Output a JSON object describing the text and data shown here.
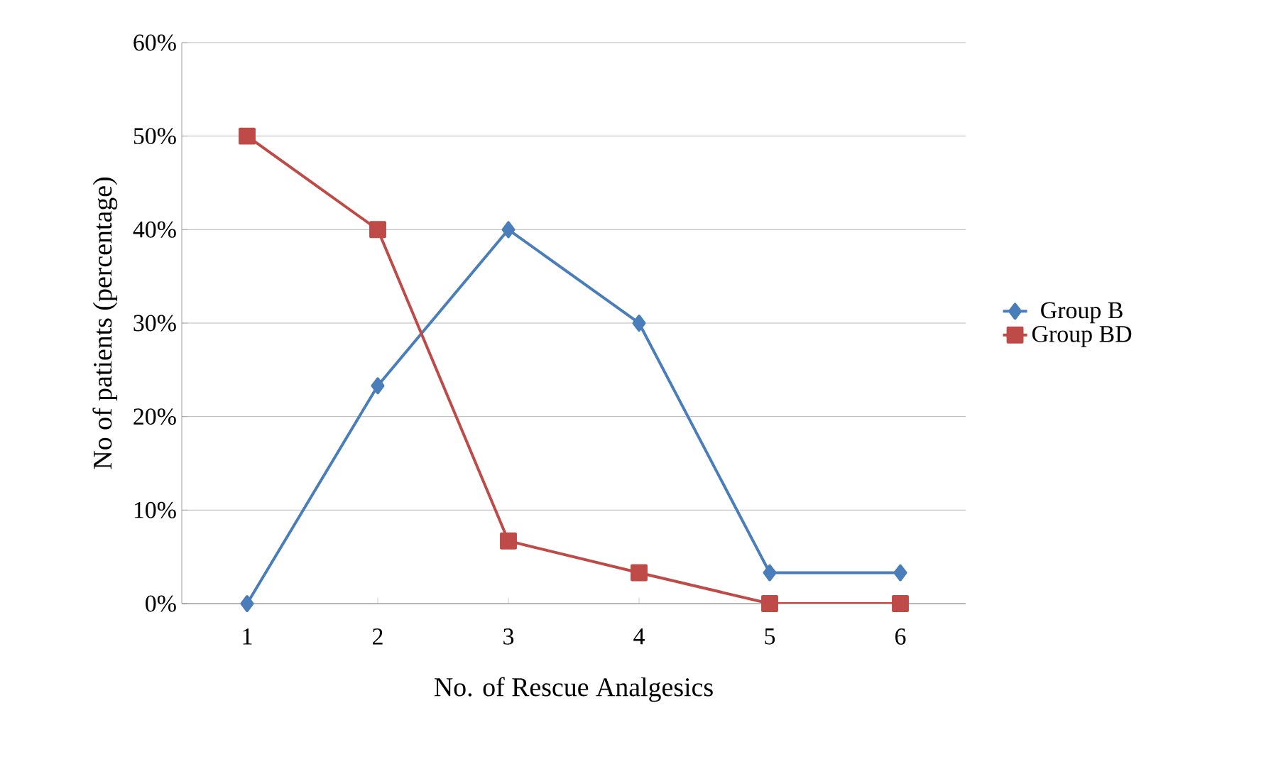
{
  "chart_data": {
    "type": "line",
    "xlabel": "No. of Rescue Analgesics",
    "ylabel": "No of patients (percentage)",
    "categories": [
      "1",
      "2",
      "3",
      "4",
      "5",
      "6"
    ],
    "series": [
      {
        "name": "Group B",
        "color": "#4a7ebb",
        "marker": "diamond",
        "values": [
          0,
          23.3,
          40,
          30,
          3.3,
          3.3
        ]
      },
      {
        "name": "Group BD",
        "color": "#be4b48",
        "marker": "square",
        "values": [
          50,
          40,
          6.7,
          3.3,
          0,
          0
        ]
      }
    ],
    "ylim": [
      0,
      60
    ],
    "yticks": [
      {
        "value": 0,
        "label": "0%"
      },
      {
        "value": 10,
        "label": "10%"
      },
      {
        "value": 20,
        "label": "20%"
      },
      {
        "value": 30,
        "label": "30%"
      },
      {
        "value": 40,
        "label": "40%"
      },
      {
        "value": 50,
        "label": "50%"
      },
      {
        "value": 60,
        "label": "60%"
      }
    ],
    "grid": "y",
    "legend": "right",
    "line_style": "solid"
  }
}
